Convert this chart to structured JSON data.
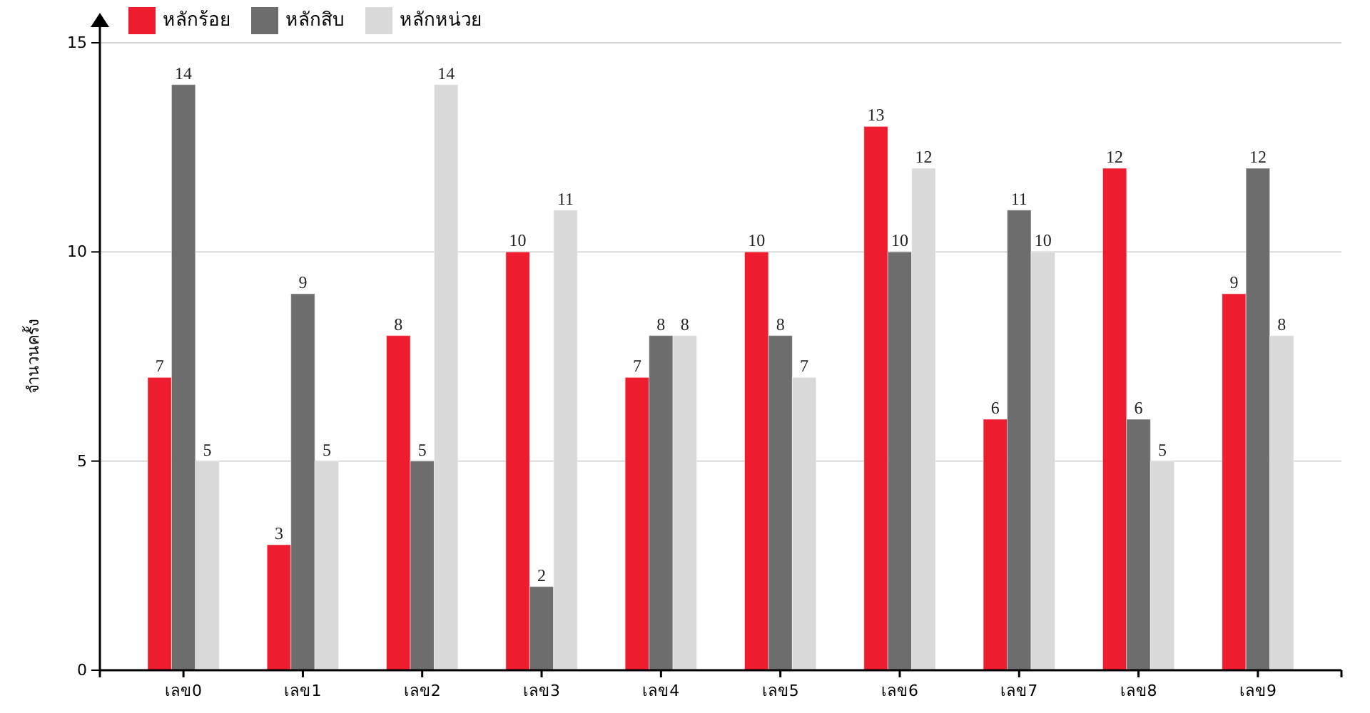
{
  "chart_data": {
    "type": "bar",
    "ylabel": "จำนวนครั้ง",
    "categories": [
      "เลข0",
      "เลข1",
      "เลข2",
      "เลข3",
      "เลข4",
      "เลข5",
      "เลข6",
      "เลข7",
      "เลข8",
      "เลข9"
    ],
    "series": [
      {
        "name": "หลักร้อย",
        "color": "#ed1c2e",
        "values": [
          7,
          3,
          8,
          10,
          7,
          10,
          13,
          6,
          12,
          9
        ]
      },
      {
        "name": "หลักสิบ",
        "color": "#6d6d6d",
        "values": [
          14,
          9,
          5,
          2,
          8,
          8,
          10,
          11,
          6,
          12
        ]
      },
      {
        "name": "หลักหน่วย",
        "color": "#d9d9d9",
        "values": [
          5,
          5,
          14,
          11,
          8,
          7,
          12,
          10,
          5,
          8
        ]
      }
    ],
    "ylim": [
      0,
      15
    ],
    "yticks": [
      0,
      5,
      10,
      15
    ],
    "grid": "y",
    "legend": "top left",
    "data_labels": true
  }
}
